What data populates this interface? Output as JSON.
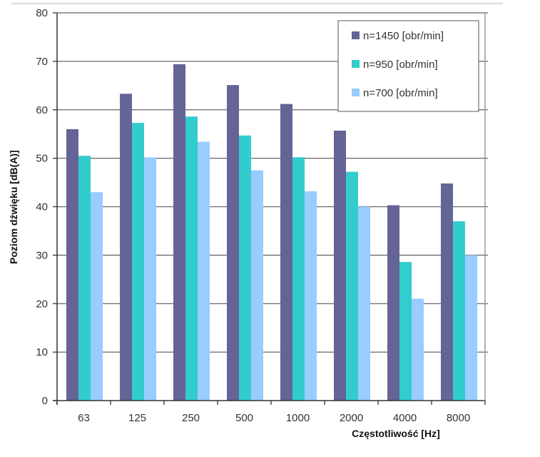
{
  "chart_data": {
    "type": "bar",
    "title": "",
    "xlabel": "Częstotliwość [Hz]",
    "ylabel": "Poziom dźwięku [dB(A)]",
    "categories": [
      "63",
      "125",
      "250",
      "500",
      "1000",
      "2000",
      "4000",
      "8000"
    ],
    "ylim": [
      0,
      80
    ],
    "yticks": [
      0,
      10,
      20,
      30,
      40,
      50,
      60,
      70,
      80
    ],
    "grid": true,
    "legend_position": "top-right",
    "series": [
      {
        "name": "n=1450 [obr/min]",
        "color": "#646496",
        "values": [
          56,
          63.3,
          69.4,
          65.1,
          61.2,
          55.7,
          40.3,
          44.8
        ]
      },
      {
        "name": "n=950 [obr/min]",
        "color": "#33cccc",
        "values": [
          50.5,
          57.3,
          58.6,
          54.7,
          50.2,
          47.2,
          28.6,
          37.0
        ]
      },
      {
        "name": "n=700 [obr/min]",
        "color": "#99ccff",
        "values": [
          43,
          50.2,
          53.4,
          47.5,
          43.2,
          40,
          21,
          30
        ]
      }
    ]
  }
}
